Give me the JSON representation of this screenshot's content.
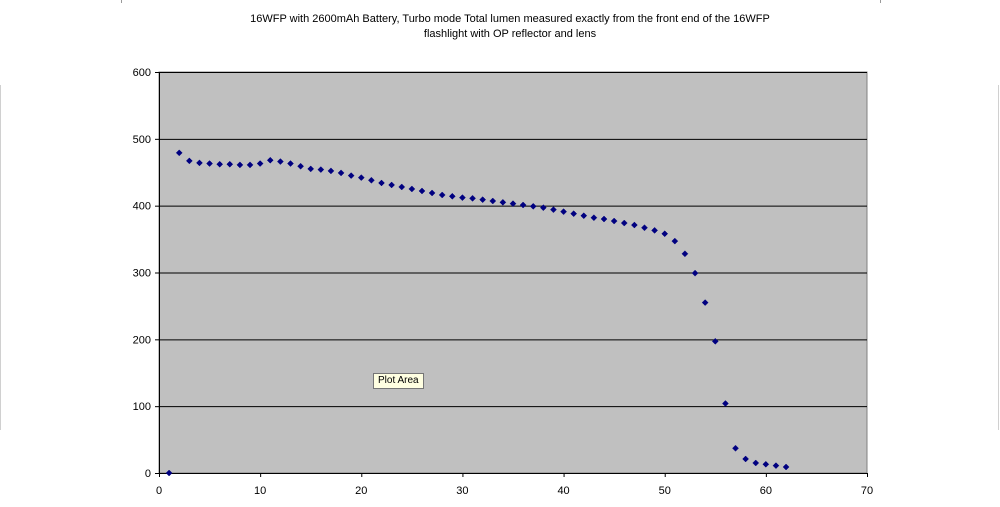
{
  "chart_data": {
    "type": "scatter",
    "title_line1": "16WFP with 2600mAh Battery, Turbo mode Total lumen measured exactly from the front end of the 16WFP",
    "title_line2": "flashlight with OP reflector and lens",
    "xlabel": "",
    "ylabel": "",
    "xlim": [
      0,
      70
    ],
    "ylim": [
      0,
      600
    ],
    "x_ticks": [
      0,
      10,
      20,
      30,
      40,
      50,
      60,
      70
    ],
    "y_ticks": [
      0,
      100,
      200,
      300,
      400,
      500,
      600
    ],
    "grid": "horizontal",
    "plot_background": "#c0c0c0",
    "marker_color": "#000080",
    "gridline_color": "#000000",
    "legend": "none",
    "series": [
      {
        "x": [
          1,
          2,
          3,
          4,
          5,
          6,
          7,
          8,
          9,
          10,
          11,
          12,
          13,
          14,
          15,
          16,
          17,
          18,
          19,
          20,
          21,
          22,
          23,
          24,
          25,
          26,
          27,
          28,
          29,
          30,
          31,
          32,
          33,
          34,
          35,
          36,
          37,
          38,
          39,
          40,
          41,
          42,
          43,
          44,
          45,
          46,
          47,
          48,
          49,
          50,
          51,
          52,
          53,
          54,
          55,
          56,
          57,
          58,
          59,
          60,
          61,
          62
        ],
        "y": [
          0,
          479,
          467,
          464,
          463,
          462,
          462,
          461,
          461,
          463,
          468,
          466,
          463,
          459,
          455,
          454,
          452,
          449,
          445,
          442,
          438,
          434,
          431,
          428,
          425,
          422,
          419,
          416,
          414,
          412,
          411,
          409,
          407,
          405,
          403,
          401,
          399,
          397,
          394,
          391,
          388,
          385,
          382,
          380,
          377,
          374,
          371,
          367,
          363,
          358,
          347,
          328,
          299,
          255,
          197,
          104,
          37,
          21,
          15,
          13,
          11,
          9
        ]
      }
    ]
  },
  "tooltip": {
    "label": "Plot Area"
  }
}
